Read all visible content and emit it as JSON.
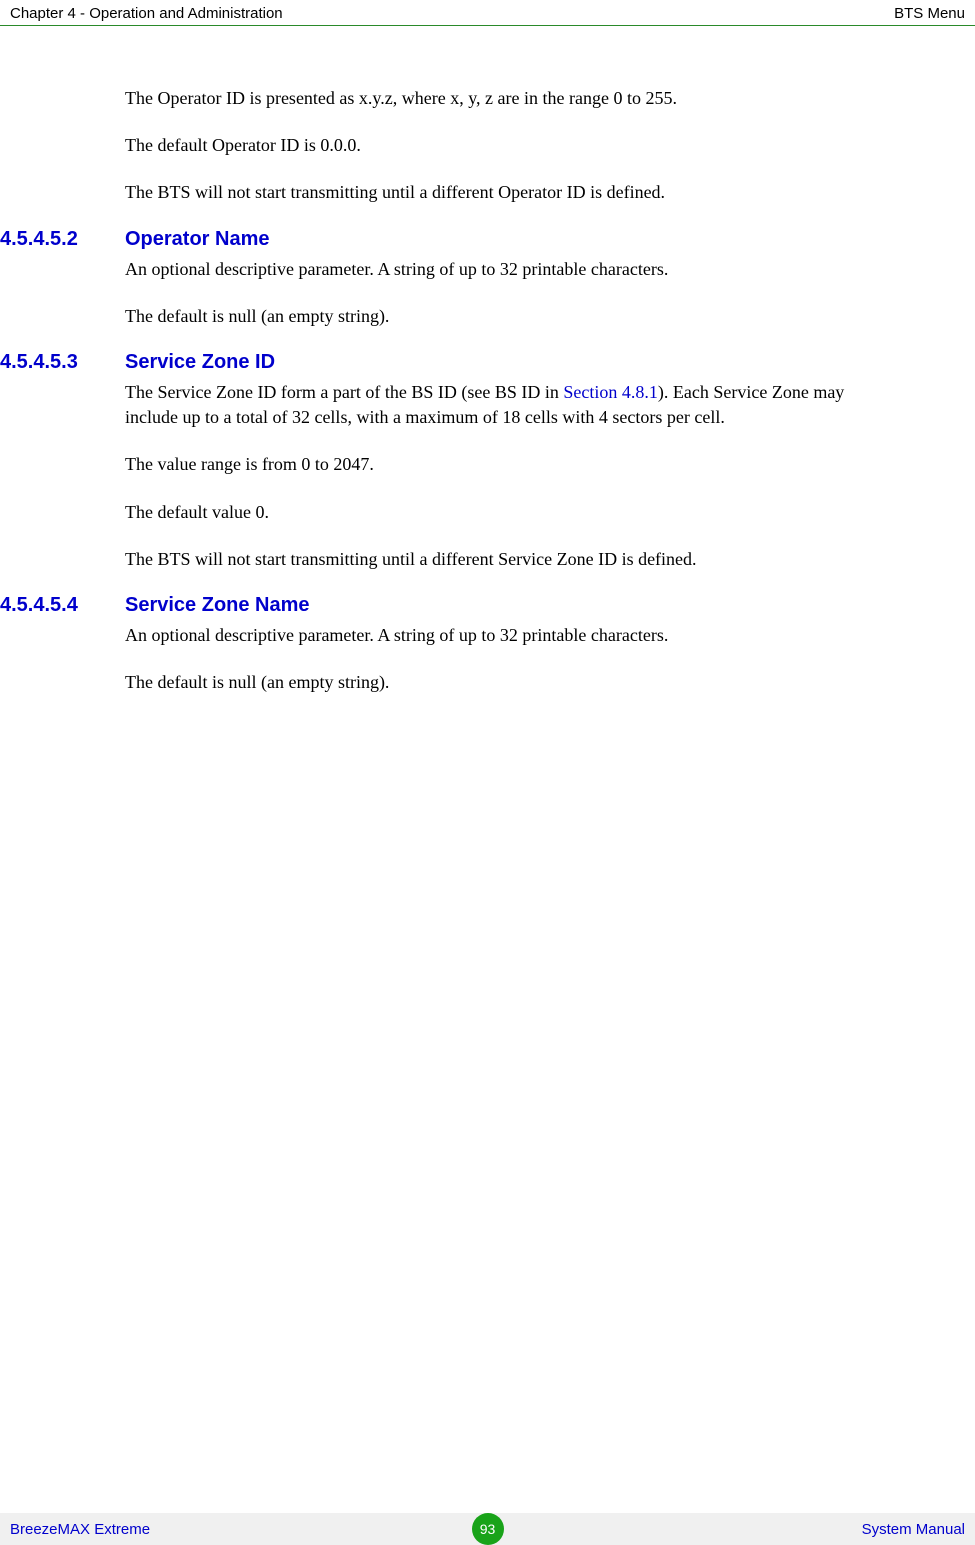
{
  "header": {
    "left": "Chapter 4 - Operation and Administration",
    "right": "BTS Menu"
  },
  "intro": {
    "p1": "The Operator ID is presented as x.y.z, where x, y, z are in the range 0 to 255.",
    "p2": "The default Operator ID is 0.0.0.",
    "p3": "The BTS will not start transmitting until a different Operator ID is defined."
  },
  "section1": {
    "number": "4.5.4.5.2",
    "title": "Operator Name",
    "p1": "An optional descriptive parameter. A string of up to 32 printable characters.",
    "p2": "The default is null (an empty string)."
  },
  "section2": {
    "number": "4.5.4.5.3",
    "title": "Service Zone ID",
    "p1_part1": "The Service Zone ID form a part of the BS ID (see BS ID in ",
    "p1_link": "Section 4.8.1",
    "p1_part2": "). Each Service Zone may include up to a total of 32 cells, with a maximum of 18 cells with 4 sectors per cell.",
    "p2": "The value range is from 0 to 2047.",
    "p3": "The default value 0.",
    "p4": "The BTS will not start transmitting until a different Service Zone ID is defined."
  },
  "section3": {
    "number": "4.5.4.5.4",
    "title": "Service Zone Name",
    "p1": "An optional descriptive parameter. A string of up to 32 printable characters.",
    "p2": "The default is null (an empty string)."
  },
  "footer": {
    "left": "BreezeMAX Extreme",
    "page": "93",
    "right": "System Manual"
  }
}
